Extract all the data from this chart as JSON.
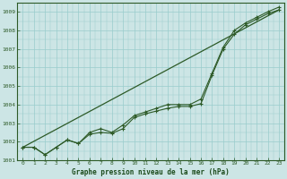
{
  "title": "Graphe pression niveau de la mer (hPa)",
  "background_color": "#cce5e5",
  "grid_color": "#99cccc",
  "line_color": "#2d5a27",
  "xlim": [
    -0.5,
    23.5
  ],
  "ylim": [
    1001.0,
    1009.5
  ],
  "yticks": [
    1001,
    1002,
    1003,
    1004,
    1005,
    1006,
    1007,
    1008,
    1009
  ],
  "xticks": [
    0,
    1,
    2,
    3,
    4,
    5,
    6,
    7,
    8,
    9,
    10,
    11,
    12,
    13,
    14,
    15,
    16,
    17,
    18,
    19,
    20,
    21,
    22,
    23
  ],
  "line1_y": [
    1001.7,
    1001.7,
    1001.3,
    1001.7,
    1002.1,
    1001.9,
    1002.4,
    1002.5,
    1002.45,
    1002.7,
    1003.3,
    1003.5,
    1003.65,
    1003.8,
    1003.9,
    1003.9,
    1004.05,
    1005.6,
    1007.0,
    1007.8,
    1008.3,
    1008.6,
    1008.9,
    1009.1
  ],
  "line2_y": [
    1001.7,
    1001.7,
    1001.3,
    1001.7,
    1002.1,
    1001.9,
    1002.5,
    1002.7,
    1002.5,
    1002.9,
    1003.4,
    1003.6,
    1003.8,
    1004.0,
    1004.0,
    1004.0,
    1004.3,
    1005.7,
    1007.1,
    1008.0,
    1008.4,
    1008.7,
    1009.0,
    1009.25
  ],
  "straight_line_x": [
    0,
    23
  ],
  "straight_line_y": [
    1001.7,
    1009.1
  ]
}
